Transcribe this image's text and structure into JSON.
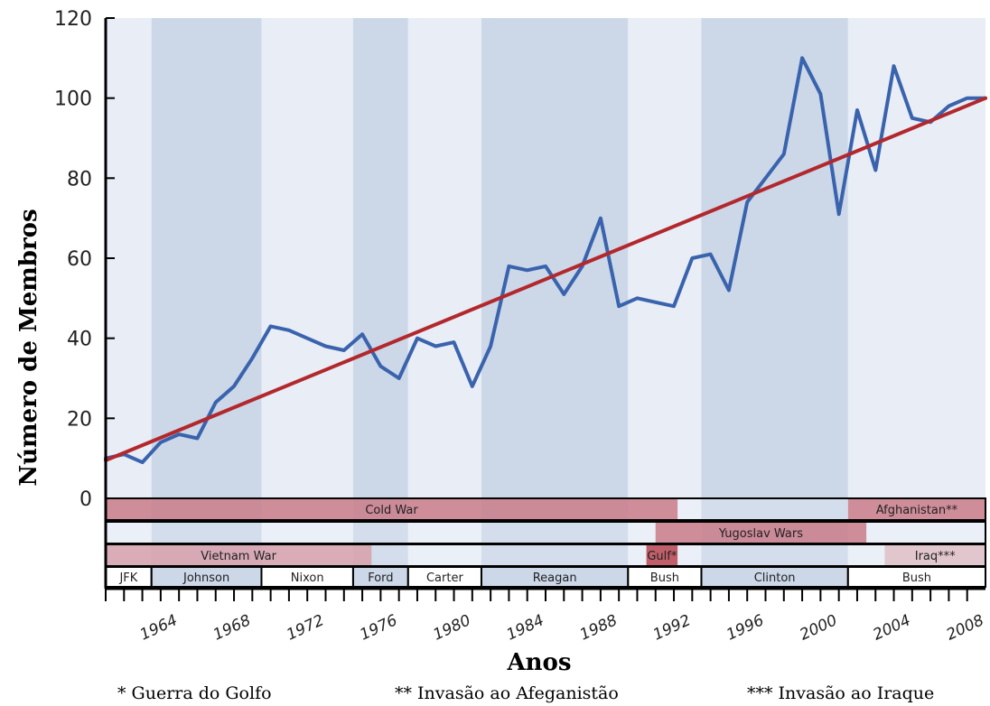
{
  "chart_data": {
    "type": "line",
    "xlabel": "Anos",
    "ylabel": "Número de Membros",
    "xlim": [
      1961,
      2009
    ],
    "ylim": [
      0,
      120
    ],
    "y_ticks": [
      0,
      20,
      40,
      60,
      80,
      100,
      120
    ],
    "x_ticks": [
      1964,
      1968,
      1972,
      1976,
      1980,
      1984,
      1988,
      1992,
      1996,
      2000,
      2004,
      2008
    ],
    "grid": false,
    "colors": {
      "series": "#3a63ad",
      "trend": "#b2282c",
      "band_dark": "#ccd7e8",
      "band_light": "#e8edf6",
      "war": "#c97b88"
    },
    "series": [
      {
        "x": [
          1961,
          1962,
          1963,
          1964,
          1965,
          1966,
          1967,
          1968,
          1969,
          1970,
          1971,
          1972,
          1973,
          1974,
          1975,
          1976,
          1977,
          1978,
          1979,
          1980,
          1981,
          1982,
          1983,
          1984,
          1985,
          1986,
          1987,
          1988,
          1989,
          1990,
          1991,
          1992,
          1993,
          1994,
          1995,
          1996,
          1997,
          1998,
          1999,
          2000,
          2001,
          2002,
          2003,
          2004,
          2005,
          2006,
          2007,
          2008,
          2009
        ],
        "y": [
          10,
          11,
          9,
          14,
          16,
          15,
          24,
          28,
          35,
          43,
          42,
          40,
          38,
          37,
          41,
          33,
          30,
          40,
          38,
          39,
          28,
          38,
          58,
          57,
          58,
          51,
          58,
          70,
          48,
          50,
          49,
          48,
          60,
          61,
          52,
          74,
          80,
          86,
          110,
          101,
          71,
          97,
          82,
          108,
          95,
          94,
          98,
          100,
          100
        ]
      },
      {
        "x": [
          1961,
          2009
        ],
        "y": [
          9.5,
          100
        ]
      }
    ],
    "presidents": [
      {
        "label": "JFK",
        "start": 1961,
        "end": 1963.5,
        "shade": "light"
      },
      {
        "label": "Johnson",
        "start": 1963.5,
        "end": 1969.5,
        "shade": "dark"
      },
      {
        "label": "Nixon",
        "start": 1969.5,
        "end": 1974.5,
        "shade": "light"
      },
      {
        "label": "Ford",
        "start": 1974.5,
        "end": 1977.5,
        "shade": "dark"
      },
      {
        "label": "Carter",
        "start": 1977.5,
        "end": 1981.5,
        "shade": "light"
      },
      {
        "label": "Reagan",
        "start": 1981.5,
        "end": 1989.5,
        "shade": "dark"
      },
      {
        "label": "Bush",
        "start": 1989.5,
        "end": 1993.5,
        "shade": "light"
      },
      {
        "label": "Clinton",
        "start": 1993.5,
        "end": 2001.5,
        "shade": "dark"
      },
      {
        "label": "Bush",
        "start": 2001.5,
        "end": 2009,
        "shade": "light"
      }
    ],
    "conflict_rows": [
      [
        {
          "label": "Cold War",
          "start": 1961,
          "end": 1992.2,
          "color": "#c97b88"
        },
        {
          "label": "Afghanistan**",
          "start": 2001.5,
          "end": 2009,
          "color": "#c97b88"
        }
      ],
      [
        {
          "label": "Yugoslav Wars",
          "start": 1991,
          "end": 2002.5,
          "color": "#c97b88"
        }
      ],
      [
        {
          "label": "Vietnam War",
          "start": 1961,
          "end": 1975.5,
          "color": "#d6a0ab"
        },
        {
          "label": "Gulf*",
          "start": 1990.5,
          "end": 1992.2,
          "color": "#b84550"
        },
        {
          "label": "Iraq***",
          "start": 2003.5,
          "end": 2009,
          "color": "#dfc0c6"
        }
      ]
    ],
    "footnotes": [
      "* Guerra do Golfo",
      "** Invasão ao Afeganistão",
      "*** Invasão ao Iraque"
    ]
  }
}
